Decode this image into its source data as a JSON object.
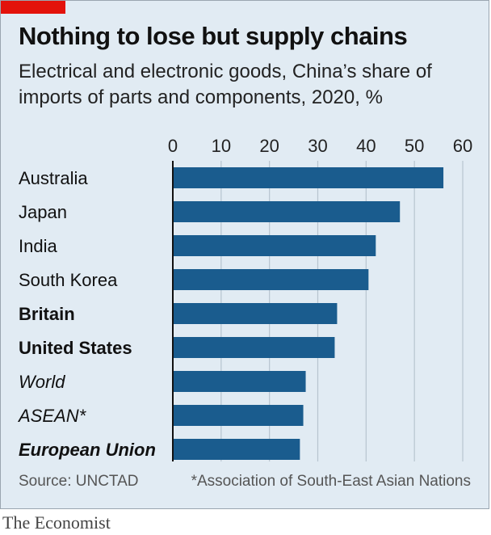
{
  "brand_color": "#e3120b",
  "bar_color": "#1a5c8e",
  "title": "Nothing to lose but supply chains",
  "subtitle": "Electrical and electronic goods, China’s share of imports of parts and components, 2020, %",
  "source": "Source: UNCTAD",
  "footnote": "*Association of South-East Asian Nations",
  "brand": "The Economist",
  "chart_data": {
    "type": "bar",
    "orientation": "horizontal",
    "title": "Nothing to lose but supply chains",
    "xlabel": "",
    "ylabel": "",
    "xlim": [
      0,
      60
    ],
    "ticks": [
      0,
      10,
      20,
      30,
      40,
      50,
      60
    ],
    "grid": true,
    "categories": [
      {
        "label": "Australia",
        "value": 56,
        "style": "normal"
      },
      {
        "label": "Japan",
        "value": 47,
        "style": "normal"
      },
      {
        "label": "India",
        "value": 42,
        "style": "normal"
      },
      {
        "label": "South Korea",
        "value": 40.5,
        "style": "normal"
      },
      {
        "label": "Britain",
        "value": 34,
        "style": "bold"
      },
      {
        "label": "United States",
        "value": 33.5,
        "style": "bold"
      },
      {
        "label": "World",
        "value": 27.5,
        "style": "italic"
      },
      {
        "label": "ASEAN*",
        "value": 27,
        "style": "italic"
      },
      {
        "label": "European Union",
        "value": 26.3,
        "style": "bold-italic"
      }
    ]
  }
}
